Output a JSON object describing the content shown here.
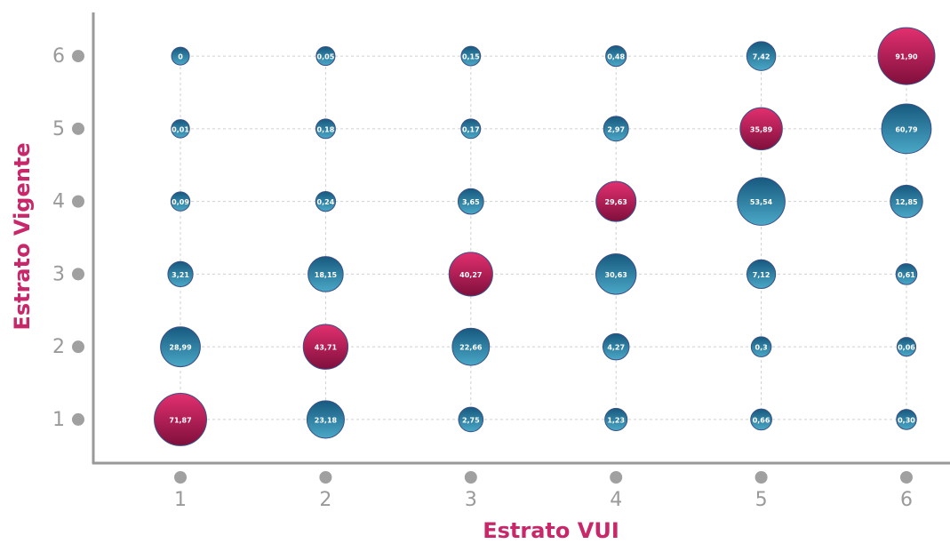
{
  "chart_data": {
    "type": "bubble",
    "x_label": "Estrato VUI",
    "y_label": "Estrato Vigente",
    "xlim": [
      0.4,
      6.3
    ],
    "ylim": [
      0.4,
      6.6
    ],
    "xticks": [
      1,
      2,
      3,
      4,
      5,
      6
    ],
    "yticks": [
      1,
      2,
      3,
      4,
      5,
      6
    ],
    "grid": true,
    "points": [
      {
        "x": 1,
        "y": 6,
        "size": 0,
        "size_label": "0",
        "color": "blue"
      },
      {
        "x": 2,
        "y": 6,
        "size": 0.05,
        "size_label": "0,05",
        "color": "blue"
      },
      {
        "x": 3,
        "y": 6,
        "size": 0.15,
        "size_label": "0,15",
        "color": "blue"
      },
      {
        "x": 4,
        "y": 6,
        "size": 0.48,
        "size_label": "0,48",
        "color": "blue"
      },
      {
        "x": 5,
        "y": 6,
        "size": 7.42,
        "size_label": "7,42",
        "color": "blue"
      },
      {
        "x": 6,
        "y": 6,
        "size": 91.9,
        "size_label": "91,90",
        "color": "red"
      },
      {
        "x": 1,
        "y": 5,
        "size": 0.01,
        "size_label": "0,01",
        "color": "blue"
      },
      {
        "x": 2,
        "y": 5,
        "size": 0.18,
        "size_label": "0,18",
        "color": "blue"
      },
      {
        "x": 3,
        "y": 5,
        "size": 0.17,
        "size_label": "0,17",
        "color": "blue"
      },
      {
        "x": 4,
        "y": 5,
        "size": 2.97,
        "size_label": "2,97",
        "color": "blue"
      },
      {
        "x": 5,
        "y": 5,
        "size": 35.89,
        "size_label": "35,89",
        "color": "red"
      },
      {
        "x": 6,
        "y": 5,
        "size": 60.79,
        "size_label": "60,79",
        "color": "blue"
      },
      {
        "x": 1,
        "y": 4,
        "size": 0.09,
        "size_label": "0,09",
        "color": "blue"
      },
      {
        "x": 2,
        "y": 4,
        "size": 0.24,
        "size_label": "0,24",
        "color": "blue"
      },
      {
        "x": 3,
        "y": 4,
        "size": 3.65,
        "size_label": "3,65",
        "color": "blue"
      },
      {
        "x": 4,
        "y": 4,
        "size": 29.63,
        "size_label": "29,63",
        "color": "red"
      },
      {
        "x": 5,
        "y": 4,
        "size": 53.54,
        "size_label": "53,54",
        "color": "blue"
      },
      {
        "x": 6,
        "y": 4,
        "size": 12.85,
        "size_label": "12,85",
        "color": "blue"
      },
      {
        "x": 1,
        "y": 3,
        "size": 3.21,
        "size_label": "3,21",
        "color": "blue"
      },
      {
        "x": 2,
        "y": 3,
        "size": 18.15,
        "size_label": "18,15",
        "color": "blue"
      },
      {
        "x": 3,
        "y": 3,
        "size": 40.27,
        "size_label": "40,27",
        "color": "red"
      },
      {
        "x": 4,
        "y": 3,
        "size": 30.63,
        "size_label": "30,63",
        "color": "blue"
      },
      {
        "x": 5,
        "y": 3,
        "size": 7.12,
        "size_label": "7,12",
        "color": "blue"
      },
      {
        "x": 6,
        "y": 3,
        "size": 0.61,
        "size_label": "0,61",
        "color": "blue"
      },
      {
        "x": 1,
        "y": 2,
        "size": 28.99,
        "size_label": "28,99",
        "color": "blue"
      },
      {
        "x": 2,
        "y": 2,
        "size": 43.71,
        "size_label": "43,71",
        "color": "red"
      },
      {
        "x": 3,
        "y": 2,
        "size": 22.66,
        "size_label": "22,66",
        "color": "blue"
      },
      {
        "x": 4,
        "y": 2,
        "size": 4.27,
        "size_label": "4,27",
        "color": "blue"
      },
      {
        "x": 5,
        "y": 2,
        "size": 0.3,
        "size_label": "0,3",
        "color": "blue"
      },
      {
        "x": 6,
        "y": 2,
        "size": 0.06,
        "size_label": "0,06",
        "color": "blue"
      },
      {
        "x": 1,
        "y": 1,
        "size": 71.87,
        "size_label": "71,87",
        "color": "red"
      },
      {
        "x": 2,
        "y": 1,
        "size": 23.18,
        "size_label": "23,18",
        "color": "blue"
      },
      {
        "x": 3,
        "y": 1,
        "size": 2.75,
        "size_label": "2,75",
        "color": "blue"
      },
      {
        "x": 4,
        "y": 1,
        "size": 1.23,
        "size_label": "1,23",
        "color": "blue"
      },
      {
        "x": 5,
        "y": 1,
        "size": 0.66,
        "size_label": "0,66",
        "color": "blue"
      },
      {
        "x": 6,
        "y": 1,
        "size": 0.3,
        "size_label": "0,30",
        "color": "blue"
      }
    ]
  }
}
